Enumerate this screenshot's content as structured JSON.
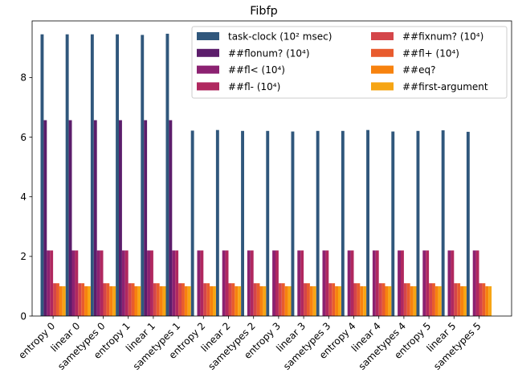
{
  "chart_data": {
    "type": "bar",
    "title": "Fibfp",
    "xlabel": "",
    "ylabel": "",
    "ylim": [
      0,
      9.9
    ],
    "yticks": [
      0,
      2,
      4,
      6,
      8
    ],
    "grid": false,
    "legend_position": "top-right",
    "legend_columns": 2,
    "categories": [
      "entropy 0",
      "linear 0",
      "sametypes 0",
      "entropy 1",
      "linear 1",
      "sametypes 1",
      "entropy 2",
      "linear 2",
      "sametypes 2",
      "entropy 3",
      "linear 3",
      "sametypes 3",
      "entropy 4",
      "linear 4",
      "sametypes 4",
      "entropy 5",
      "linear 5",
      "sametypes 5"
    ],
    "series": [
      {
        "name": "task-clock (10² msec)",
        "color": "#30577c",
        "values": [
          9.45,
          9.45,
          9.45,
          9.45,
          9.43,
          9.47,
          6.22,
          6.24,
          6.21,
          6.21,
          6.19,
          6.21,
          6.21,
          6.24,
          6.19,
          6.21,
          6.23,
          6.18
        ]
      },
      {
        "name": "##flonum? (10⁴)",
        "color": "#5c1d6b",
        "values": [
          6.57,
          6.57,
          6.57,
          6.57,
          6.57,
          6.57,
          0,
          0,
          0,
          0,
          0,
          0,
          0,
          0,
          0,
          0,
          0,
          0
        ]
      },
      {
        "name": "##fl< (10⁴)",
        "color": "#8c2171",
        "values": [
          2.2,
          2.2,
          2.2,
          2.2,
          2.2,
          2.2,
          2.2,
          2.2,
          2.2,
          2.2,
          2.2,
          2.2,
          2.2,
          2.2,
          2.2,
          2.2,
          2.2,
          2.2
        ]
      },
      {
        "name": "##fl- (10⁴)",
        "color": "#b0285f",
        "values": [
          2.2,
          2.2,
          2.2,
          2.2,
          2.2,
          2.2,
          2.2,
          2.2,
          2.2,
          2.2,
          2.2,
          2.2,
          2.2,
          2.2,
          2.2,
          2.2,
          2.2,
          2.2
        ]
      },
      {
        "name": "##fixnum? (10⁴)",
        "color": "#d4464a",
        "values": [
          1.1,
          1.1,
          1.1,
          1.1,
          1.1,
          1.1,
          1.1,
          1.1,
          1.1,
          1.1,
          1.1,
          1.1,
          1.1,
          1.1,
          1.1,
          1.1,
          1.1,
          1.1
        ]
      },
      {
        "name": "##fl+ (10⁴)",
        "color": "#e85b2e",
        "values": [
          1.1,
          1.1,
          1.1,
          1.1,
          1.1,
          1.1,
          1.1,
          1.1,
          1.1,
          1.1,
          1.1,
          1.1,
          1.1,
          1.1,
          1.1,
          1.1,
          1.1,
          1.1
        ]
      },
      {
        "name": "##eq?",
        "color": "#f7820e",
        "values": [
          1.0,
          1.0,
          1.0,
          1.0,
          1.0,
          1.0,
          1.0,
          1.0,
          1.0,
          1.0,
          1.0,
          1.0,
          1.0,
          1.0,
          1.0,
          1.0,
          1.0,
          1.0
        ]
      },
      {
        "name": "##first-argument",
        "color": "#f6a514",
        "values": [
          1.0,
          1.0,
          1.0,
          1.0,
          1.0,
          1.0,
          1.0,
          1.0,
          1.0,
          1.0,
          1.0,
          1.0,
          1.0,
          1.0,
          1.0,
          1.0,
          1.0,
          1.0
        ]
      }
    ]
  }
}
